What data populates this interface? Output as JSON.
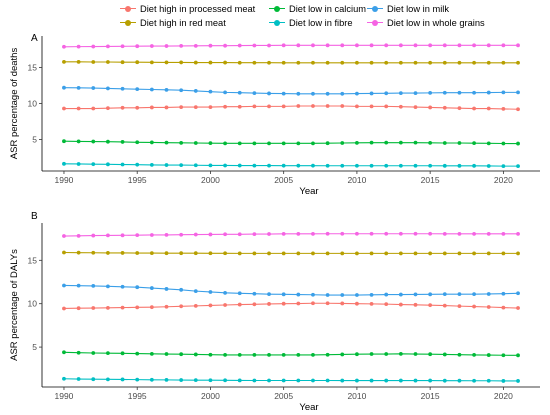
{
  "legend": [
    {
      "label": "Diet high in processed meat",
      "color": "#F8766D"
    },
    {
      "label": "Diet low in calcium",
      "color": "#00BA38"
    },
    {
      "label": "Diet low in milk",
      "color": "#3B9FE8"
    },
    {
      "label": "Diet high in red meat",
      "color": "#B79F00"
    },
    {
      "label": "Diet low in fibre",
      "color": "#00BFC4"
    },
    {
      "label": "Diet low in whole grains",
      "color": "#F564E3"
    }
  ],
  "chart_data": [
    {
      "type": "line",
      "panel_label": "A",
      "xlabel": "Year",
      "ylabel": "ASR percentage of deaths",
      "x": [
        1990,
        1991,
        1992,
        1993,
        1994,
        1995,
        1996,
        1997,
        1998,
        1999,
        2000,
        2001,
        2002,
        2003,
        2004,
        2005,
        2006,
        2007,
        2008,
        2009,
        2010,
        2011,
        2012,
        2013,
        2014,
        2015,
        2016,
        2017,
        2018,
        2019,
        2020,
        2021
      ],
      "xlim": [
        1988.5,
        2022.5
      ],
      "ylim": [
        0.6,
        19.4
      ],
      "xticks": [
        "1990",
        "1995",
        "2000",
        "2005",
        "2010",
        "2015",
        "2020"
      ],
      "yticks": [
        "5",
        "10",
        "15"
      ],
      "grid": false,
      "series": [
        {
          "name": "Diet high in processed meat",
          "color": "#F8766D",
          "values": [
            9.3,
            9.3,
            9.3,
            9.35,
            9.4,
            9.4,
            9.45,
            9.45,
            9.5,
            9.5,
            9.5,
            9.55,
            9.55,
            9.6,
            9.6,
            9.6,
            9.65,
            9.65,
            9.65,
            9.65,
            9.6,
            9.6,
            9.6,
            9.55,
            9.5,
            9.45,
            9.4,
            9.35,
            9.3,
            9.3,
            9.25,
            9.2
          ]
        },
        {
          "name": "Diet low in calcium",
          "color": "#00BA38",
          "values": [
            4.75,
            4.72,
            4.7,
            4.68,
            4.65,
            4.6,
            4.58,
            4.55,
            4.52,
            4.5,
            4.48,
            4.45,
            4.45,
            4.45,
            4.45,
            4.45,
            4.45,
            4.45,
            4.47,
            4.5,
            4.52,
            4.55,
            4.55,
            4.55,
            4.55,
            4.52,
            4.5,
            4.5,
            4.48,
            4.45,
            4.43,
            4.42
          ]
        },
        {
          "name": "Diet low in milk",
          "color": "#3B9FE8",
          "values": [
            12.2,
            12.18,
            12.15,
            12.1,
            12.05,
            12.0,
            11.95,
            11.9,
            11.85,
            11.75,
            11.65,
            11.55,
            11.5,
            11.45,
            11.4,
            11.38,
            11.35,
            11.35,
            11.35,
            11.35,
            11.38,
            11.4,
            11.42,
            11.45,
            11.45,
            11.48,
            11.5,
            11.5,
            11.5,
            11.52,
            11.55,
            11.55
          ]
        },
        {
          "name": "Diet high in red meat",
          "color": "#B79F00",
          "values": [
            15.8,
            15.8,
            15.78,
            15.78,
            15.75,
            15.75,
            15.73,
            15.72,
            15.72,
            15.7,
            15.7,
            15.7,
            15.68,
            15.68,
            15.68,
            15.67,
            15.67,
            15.67,
            15.67,
            15.67,
            15.67,
            15.67,
            15.67,
            15.67,
            15.67,
            15.67,
            15.67,
            15.67,
            15.67,
            15.67,
            15.67,
            15.67
          ]
        },
        {
          "name": "Diet low in fibre",
          "color": "#00BFC4",
          "values": [
            1.6,
            1.58,
            1.55,
            1.53,
            1.5,
            1.48,
            1.45,
            1.43,
            1.42,
            1.4,
            1.38,
            1.37,
            1.36,
            1.35,
            1.35,
            1.34,
            1.34,
            1.34,
            1.33,
            1.33,
            1.33,
            1.33,
            1.33,
            1.33,
            1.33,
            1.33,
            1.32,
            1.32,
            1.32,
            1.3,
            1.28,
            1.28
          ]
        },
        {
          "name": "Diet low in whole grains",
          "color": "#F564E3",
          "values": [
            17.9,
            17.92,
            17.93,
            17.95,
            17.97,
            17.98,
            18.0,
            18.0,
            18.02,
            18.03,
            18.05,
            18.05,
            18.07,
            18.08,
            18.08,
            18.1,
            18.1,
            18.1,
            18.1,
            18.1,
            18.1,
            18.1,
            18.1,
            18.1,
            18.1,
            18.1,
            18.1,
            18.1,
            18.1,
            18.1,
            18.1,
            18.1
          ]
        }
      ]
    },
    {
      "type": "line",
      "panel_label": "B",
      "xlabel": "Year",
      "ylabel": "ASR percentage of DALYs",
      "x": [
        1990,
        1991,
        1992,
        1993,
        1994,
        1995,
        1996,
        1997,
        1998,
        1999,
        2000,
        2001,
        2002,
        2003,
        2004,
        2005,
        2006,
        2007,
        2008,
        2009,
        2010,
        2011,
        2012,
        2013,
        2014,
        2015,
        2016,
        2017,
        2018,
        2019,
        2020,
        2021
      ],
      "xlim": [
        1988.5,
        2022.5
      ],
      "ylim": [
        0.4,
        19.3
      ],
      "xticks": [
        "1990",
        "1995",
        "2000",
        "2005",
        "2010",
        "2015",
        "2020"
      ],
      "yticks": [
        "5",
        "10",
        "15"
      ],
      "grid": false,
      "series": [
        {
          "name": "Diet high in processed meat",
          "color": "#F8766D",
          "values": [
            9.45,
            9.48,
            9.5,
            9.52,
            9.55,
            9.58,
            9.6,
            9.65,
            9.7,
            9.75,
            9.8,
            9.85,
            9.9,
            9.93,
            9.97,
            10.0,
            10.02,
            10.05,
            10.05,
            10.03,
            10.0,
            9.98,
            9.95,
            9.9,
            9.87,
            9.83,
            9.78,
            9.72,
            9.67,
            9.62,
            9.55,
            9.5
          ]
        },
        {
          "name": "Diet low in calcium",
          "color": "#00BA38",
          "values": [
            4.4,
            4.35,
            4.32,
            4.3,
            4.28,
            4.25,
            4.22,
            4.2,
            4.18,
            4.15,
            4.12,
            4.1,
            4.1,
            4.1,
            4.1,
            4.1,
            4.1,
            4.1,
            4.12,
            4.15,
            4.18,
            4.2,
            4.2,
            4.22,
            4.2,
            4.18,
            4.15,
            4.12,
            4.1,
            4.08,
            4.06,
            4.05
          ]
        },
        {
          "name": "Diet low in milk",
          "color": "#3B9FE8",
          "values": [
            12.1,
            12.08,
            12.05,
            12.0,
            11.95,
            11.9,
            11.8,
            11.7,
            11.6,
            11.45,
            11.35,
            11.25,
            11.2,
            11.15,
            11.1,
            11.08,
            11.05,
            11.03,
            11.0,
            11.0,
            11.0,
            11.02,
            11.05,
            11.05,
            11.07,
            11.08,
            11.1,
            11.1,
            11.1,
            11.12,
            11.15,
            11.2
          ]
        },
        {
          "name": "Diet high in red meat",
          "color": "#B79F00",
          "values": [
            15.9,
            15.88,
            15.87,
            15.85,
            15.85,
            15.84,
            15.83,
            15.82,
            15.82,
            15.82,
            15.81,
            15.81,
            15.8,
            15.8,
            15.8,
            15.8,
            15.8,
            15.8,
            15.8,
            15.8,
            15.8,
            15.8,
            15.8,
            15.8,
            15.8,
            15.8,
            15.8,
            15.8,
            15.8,
            15.8,
            15.8,
            15.8
          ]
        },
        {
          "name": "Diet low in fibre",
          "color": "#00BFC4",
          "values": [
            1.35,
            1.32,
            1.3,
            1.28,
            1.27,
            1.25,
            1.23,
            1.22,
            1.2,
            1.19,
            1.18,
            1.17,
            1.16,
            1.15,
            1.15,
            1.15,
            1.15,
            1.15,
            1.15,
            1.14,
            1.14,
            1.14,
            1.14,
            1.14,
            1.14,
            1.14,
            1.13,
            1.13,
            1.12,
            1.12,
            1.1,
            1.1
          ]
        },
        {
          "name": "Diet low in whole grains",
          "color": "#F564E3",
          "values": [
            17.8,
            17.82,
            17.85,
            17.87,
            17.88,
            17.9,
            17.92,
            17.93,
            17.95,
            17.97,
            17.98,
            18.0,
            18.0,
            18.02,
            18.03,
            18.05,
            18.05,
            18.05,
            18.06,
            18.06,
            18.06,
            18.06,
            18.06,
            18.06,
            18.06,
            18.06,
            18.05,
            18.05,
            18.05,
            18.05,
            18.05,
            18.05
          ]
        }
      ]
    }
  ]
}
